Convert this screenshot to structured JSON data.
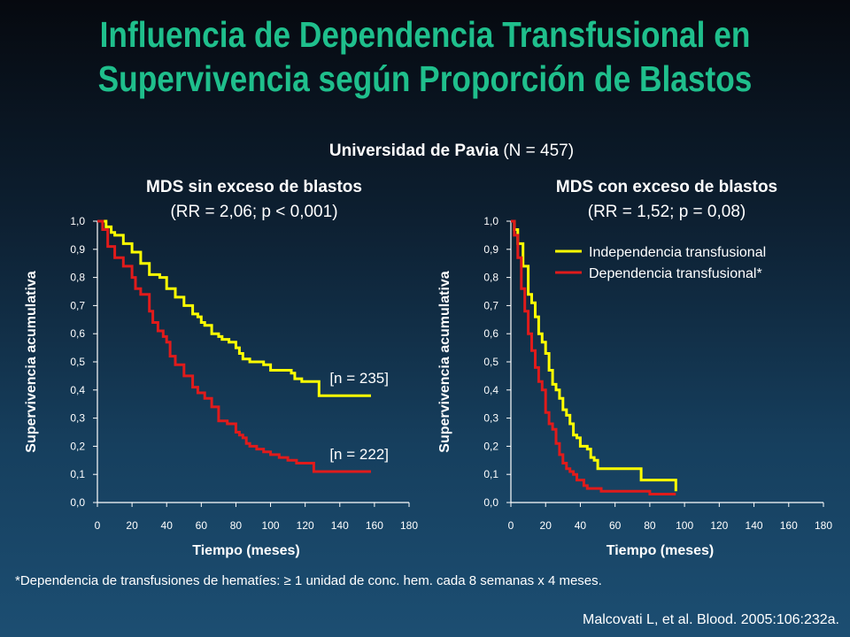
{
  "slide": {
    "title_line1": "Influencia de Dependencia Transfusional en",
    "title_line2": "Supervivencia según Proporción de Blastos",
    "subtitle_bold": "Universidad de Pavia",
    "subtitle_rest": " (N = 457)",
    "footnote": "*Dependencia de transfusiones de hematíes: ≥ 1 unidad de conc. hem. cada 8 semanas x 4 meses.",
    "citation": "Malcovati L, et al. Blood. 2005:106:232a."
  },
  "colors": {
    "independence": "#ffff00",
    "dependence": "#e01b1b",
    "title": "#1fbf8c"
  },
  "chart_data": [
    {
      "type": "line",
      "title": "MDS sin exceso de blastos",
      "subtitle": "(RR = 2,06; p < 0,001)",
      "xlabel": "Tiempo (meses)",
      "ylabel": "Supervivencia acumulativa",
      "xlim": [
        0,
        180
      ],
      "ylim": [
        0,
        1
      ],
      "x_ticks": [
        "0",
        "20",
        "40",
        "60",
        "80",
        "100",
        "120",
        "140",
        "160",
        "180"
      ],
      "y_ticks": [
        "0,0",
        "0,1",
        "0,2",
        "0,3",
        "0,4",
        "0,5",
        "0,6",
        "0,7",
        "0,8",
        "0,9",
        "1,0"
      ],
      "annotations": [
        "[n = 235]",
        "[n = 222]"
      ],
      "series": [
        {
          "name": "Independencia transfusional",
          "x": [
            0,
            5,
            8,
            10,
            15,
            20,
            25,
            30,
            36,
            40,
            45,
            50,
            55,
            58,
            60,
            62,
            66,
            70,
            72,
            76,
            80,
            82,
            84,
            86,
            88,
            92,
            96,
            100,
            108,
            112,
            114,
            118,
            120,
            124,
            128,
            132,
            140,
            150,
            158
          ],
          "y": [
            1.0,
            0.98,
            0.96,
            0.95,
            0.92,
            0.89,
            0.85,
            0.81,
            0.8,
            0.76,
            0.73,
            0.7,
            0.67,
            0.66,
            0.64,
            0.63,
            0.6,
            0.59,
            0.58,
            0.57,
            0.55,
            0.53,
            0.51,
            0.51,
            0.5,
            0.5,
            0.49,
            0.47,
            0.47,
            0.46,
            0.44,
            0.43,
            0.43,
            0.43,
            0.38,
            0.38,
            0.38,
            0.38,
            0.38
          ]
        },
        {
          "name": "Dependencia transfusional*",
          "x": [
            0,
            3,
            6,
            10,
            15,
            20,
            22,
            25,
            30,
            32,
            35,
            38,
            40,
            42,
            45,
            50,
            55,
            58,
            62,
            66,
            70,
            75,
            80,
            82,
            84,
            86,
            88,
            92,
            96,
            100,
            105,
            110,
            115,
            122,
            125,
            130,
            140,
            150,
            158
          ],
          "y": [
            1.0,
            0.97,
            0.91,
            0.87,
            0.84,
            0.8,
            0.76,
            0.74,
            0.68,
            0.64,
            0.61,
            0.59,
            0.57,
            0.52,
            0.49,
            0.45,
            0.41,
            0.39,
            0.37,
            0.34,
            0.29,
            0.28,
            0.25,
            0.24,
            0.23,
            0.21,
            0.2,
            0.19,
            0.18,
            0.17,
            0.16,
            0.15,
            0.14,
            0.14,
            0.11,
            0.11,
            0.11,
            0.11,
            0.11
          ]
        }
      ]
    },
    {
      "type": "line",
      "title": "MDS con exceso de blastos",
      "subtitle": "(RR = 1,52; p = 0,08)",
      "xlabel": "Tiempo (meses)",
      "ylabel": "Supervivencia acumulativa",
      "xlim": [
        0,
        180
      ],
      "ylim": [
        0,
        1
      ],
      "x_ticks": [
        "0",
        "20",
        "40",
        "60",
        "80",
        "100",
        "120",
        "140",
        "160",
        "180"
      ],
      "y_ticks": [
        "0,0",
        "0,1",
        "0,2",
        "0,3",
        "0,4",
        "0,5",
        "0,6",
        "0,7",
        "0,8",
        "0,9",
        "1,0"
      ],
      "legend": "top-right",
      "series": [
        {
          "name": "Independencia transfusional",
          "x": [
            0,
            2,
            4,
            7,
            10,
            12,
            14,
            16,
            18,
            20,
            22,
            24,
            26,
            28,
            30,
            32,
            34,
            36,
            38,
            40,
            42,
            44,
            46,
            48,
            50,
            54,
            60,
            70,
            75,
            80,
            85,
            90,
            95
          ],
          "y": [
            1.0,
            0.97,
            0.92,
            0.84,
            0.74,
            0.71,
            0.66,
            0.6,
            0.57,
            0.53,
            0.47,
            0.42,
            0.4,
            0.37,
            0.33,
            0.31,
            0.28,
            0.24,
            0.23,
            0.2,
            0.2,
            0.19,
            0.16,
            0.15,
            0.12,
            0.12,
            0.12,
            0.12,
            0.08,
            0.08,
            0.08,
            0.08,
            0.04
          ]
        },
        {
          "name": "Dependencia transfusional*",
          "x": [
            0,
            2,
            4,
            6,
            8,
            10,
            12,
            14,
            16,
            18,
            20,
            22,
            24,
            26,
            28,
            30,
            32,
            34,
            36,
            38,
            40,
            42,
            44,
            48,
            52,
            60,
            70,
            80,
            90,
            95
          ],
          "y": [
            1.0,
            0.95,
            0.87,
            0.76,
            0.68,
            0.6,
            0.54,
            0.48,
            0.43,
            0.4,
            0.32,
            0.28,
            0.26,
            0.21,
            0.17,
            0.14,
            0.12,
            0.11,
            0.1,
            0.08,
            0.08,
            0.06,
            0.05,
            0.05,
            0.04,
            0.04,
            0.04,
            0.03,
            0.03,
            0.03
          ]
        }
      ]
    }
  ]
}
